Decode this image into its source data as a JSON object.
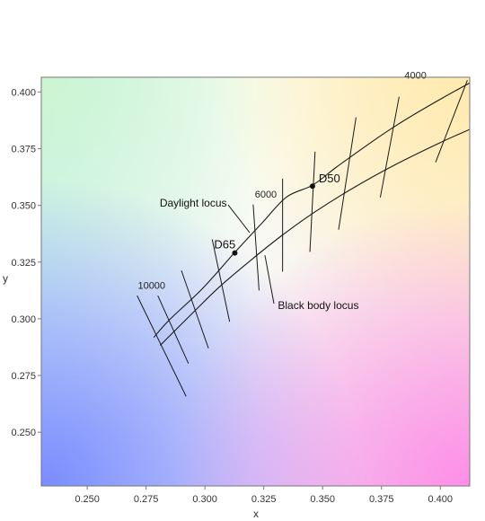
{
  "chart_data": {
    "type": "line",
    "title": "",
    "xlabel": "x",
    "ylabel": "y",
    "xlim": [
      0.2305,
      0.4125
    ],
    "ylim": [
      0.2263,
      0.4065
    ],
    "x_ticks": [
      0.25,
      0.275,
      0.3,
      0.325,
      0.35,
      0.375,
      0.4
    ],
    "x_tick_labels": [
      "0.250",
      "0.275",
      "0.300",
      "0.325",
      "0.350",
      "0.375",
      "0.400"
    ],
    "y_ticks": [
      0.25,
      0.275,
      0.3,
      0.325,
      0.35,
      0.375,
      0.4
    ],
    "y_tick_labels": [
      "0.250",
      "0.275",
      "0.300",
      "0.325",
      "0.350",
      "0.375",
      "0.400"
    ],
    "grid": false,
    "background": "CIE 1931 chromaticity colour field",
    "series": [
      {
        "name": "Daylight locus",
        "x": [
          0.2783,
          0.2849,
          0.2991,
          0.3128,
          0.3245,
          0.3347,
          0.3457,
          0.3555,
          0.3646,
          0.3735,
          0.3812,
          0.39,
          0.401,
          0.4125
        ],
        "y": [
          0.2918,
          0.2995,
          0.3135,
          0.3294,
          0.3425,
          0.3537,
          0.3589,
          0.3666,
          0.3734,
          0.3799,
          0.3852,
          0.3908,
          0.3974,
          0.404
        ]
      },
      {
        "name": "Black body locus",
        "x": [
          0.281,
          0.2951,
          0.3062,
          0.319,
          0.3324,
          0.3467,
          0.3622,
          0.38,
          0.4,
          0.4125
        ],
        "y": [
          0.2883,
          0.3029,
          0.3141,
          0.3254,
          0.3365,
          0.3471,
          0.3572,
          0.3675,
          0.3777,
          0.3835
        ]
      }
    ],
    "isotherms": [
      {
        "x1": 0.2712,
        "y1": 0.3102,
        "x2": 0.292,
        "y2": 0.2658
      },
      {
        "x1": 0.28,
        "y1": 0.3102,
        "x2": 0.293,
        "y2": 0.2803
      },
      {
        "x1": 0.29,
        "y1": 0.3213,
        "x2": 0.3015,
        "y2": 0.287
      },
      {
        "x1": 0.3031,
        "y1": 0.335,
        "x2": 0.3105,
        "y2": 0.2987
      },
      {
        "x1": 0.3205,
        "y1": 0.3504,
        "x2": 0.323,
        "y2": 0.3125
      },
      {
        "x1": 0.333,
        "y1": 0.3618,
        "x2": 0.333,
        "y2": 0.3208
      },
      {
        "x1": 0.3468,
        "y1": 0.3737,
        "x2": 0.3446,
        "y2": 0.3295
      },
      {
        "x1": 0.3642,
        "y1": 0.3888,
        "x2": 0.3568,
        "y2": 0.3393
      },
      {
        "x1": 0.3825,
        "y1": 0.3979,
        "x2": 0.3745,
        "y2": 0.3535
      },
      {
        "x1": 0.4115,
        "y1": 0.4052,
        "x2": 0.398,
        "y2": 0.369
      }
    ],
    "points": [
      {
        "label": "D65",
        "x": 0.3127,
        "y": 0.329
      },
      {
        "label": "D50",
        "x": 0.3457,
        "y": 0.3585
      }
    ],
    "cct_labels": [
      {
        "text": "10000",
        "x": 0.2715,
        "y": 0.3133
      },
      {
        "text": "6000",
        "x": 0.3212,
        "y": 0.3535
      },
      {
        "text": "4000",
        "x": 0.3848,
        "y": 0.406
      }
    ],
    "annotations": [
      {
        "text": "Daylight locus",
        "x": 0.2808,
        "y": 0.3495,
        "arrow_to": [
          0.319,
          0.338
        ]
      },
      {
        "text": "Black body locus",
        "x": 0.331,
        "y": 0.3043,
        "arrow_to": [
          0.3255,
          0.328
        ]
      }
    ]
  }
}
